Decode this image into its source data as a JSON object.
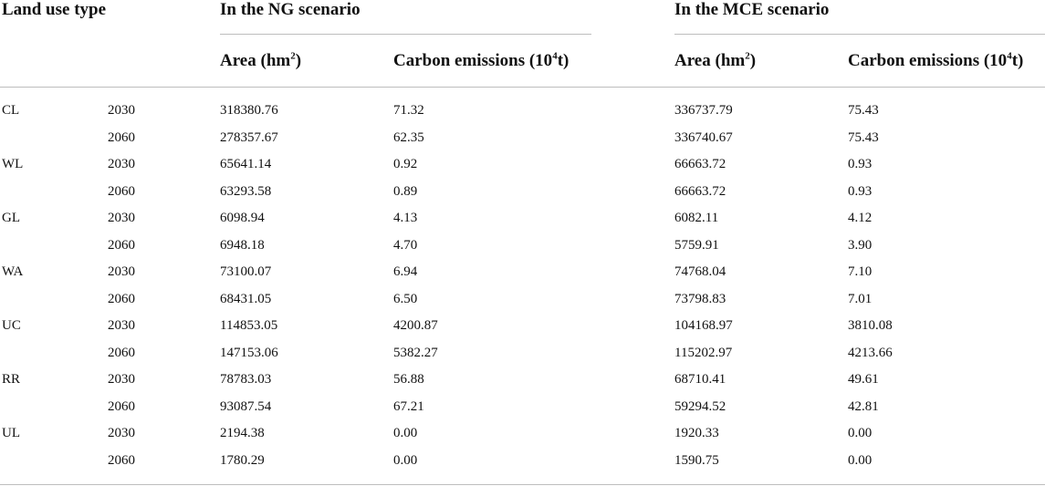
{
  "table": {
    "header": {
      "land_use_type": "Land use type",
      "ng_group": "In the NG scenario",
      "mce_group": "In the MCE scenario",
      "area_label": "Area (hm",
      "area_sup": "2",
      "area_close": ")",
      "carbon_label": "Carbon emissions (10",
      "carbon_sup": "4",
      "carbon_close": "t)"
    },
    "rows": [
      {
        "type": "CL",
        "year": "2030",
        "ng_area": "318380.76",
        "ng_carbon": "71.32",
        "mce_area": "336737.79",
        "mce_carbon": "75.43"
      },
      {
        "type": "",
        "year": "2060",
        "ng_area": "278357.67",
        "ng_carbon": "62.35",
        "mce_area": "336740.67",
        "mce_carbon": "75.43"
      },
      {
        "type": "WL",
        "year": "2030",
        "ng_area": "65641.14",
        "ng_carbon": "0.92",
        "mce_area": "66663.72",
        "mce_carbon": "0.93"
      },
      {
        "type": "",
        "year": "2060",
        "ng_area": "63293.58",
        "ng_carbon": "0.89",
        "mce_area": "66663.72",
        "mce_carbon": "0.93"
      },
      {
        "type": "GL",
        "year": "2030",
        "ng_area": "6098.94",
        "ng_carbon": "4.13",
        "mce_area": "6082.11",
        "mce_carbon": "4.12"
      },
      {
        "type": "",
        "year": "2060",
        "ng_area": "6948.18",
        "ng_carbon": "4.70",
        "mce_area": "5759.91",
        "mce_carbon": "3.90"
      },
      {
        "type": "WA",
        "year": "2030",
        "ng_area": "73100.07",
        "ng_carbon": "6.94",
        "mce_area": "74768.04",
        "mce_carbon": "7.10"
      },
      {
        "type": "",
        "year": "2060",
        "ng_area": "68431.05",
        "ng_carbon": "6.50",
        "mce_area": "73798.83",
        "mce_carbon": "7.01"
      },
      {
        "type": "UC",
        "year": "2030",
        "ng_area": "114853.05",
        "ng_carbon": "4200.87",
        "mce_area": "104168.97",
        "mce_carbon": "3810.08"
      },
      {
        "type": "",
        "year": "2060",
        "ng_area": "147153.06",
        "ng_carbon": "5382.27",
        "mce_area": "115202.97",
        "mce_carbon": "4213.66"
      },
      {
        "type": "RR",
        "year": "2030",
        "ng_area": "78783.03",
        "ng_carbon": "56.88",
        "mce_area": "68710.41",
        "mce_carbon": "49.61"
      },
      {
        "type": "",
        "year": "2060",
        "ng_area": "93087.54",
        "ng_carbon": "67.21",
        "mce_area": "59294.52",
        "mce_carbon": "42.81"
      },
      {
        "type": "UL",
        "year": "2030",
        "ng_area": "2194.38",
        "ng_carbon": "0.00",
        "mce_area": "1920.33",
        "mce_carbon": "0.00"
      },
      {
        "type": "",
        "year": "2060",
        "ng_area": "1780.29",
        "ng_carbon": "0.00",
        "mce_area": "1590.75",
        "mce_carbon": "0.00"
      }
    ]
  }
}
